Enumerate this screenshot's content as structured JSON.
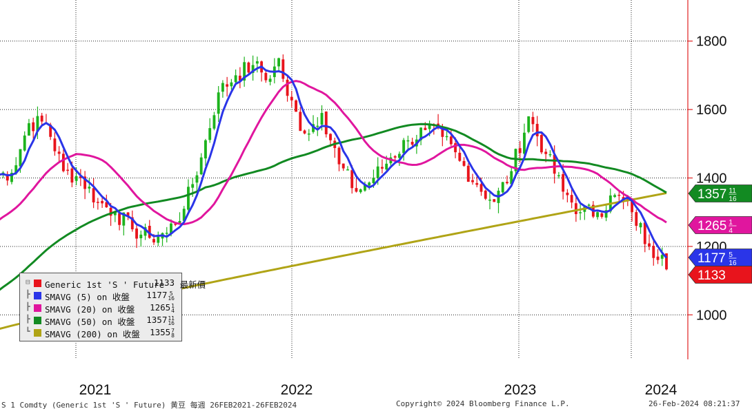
{
  "chart_data": {
    "type": "candlestick-with-moving-averages",
    "title": "",
    "x_ticks": [
      "2021",
      "2022",
      "2023",
      "2024"
    ],
    "y_ticks": [
      1000,
      1200,
      1400,
      1600,
      1800
    ],
    "ylim": [
      870,
      1920
    ],
    "grid": true,
    "x_range_weeks": 157,
    "price_anchors_close": [
      [
        0,
        1410
      ],
      [
        4,
        1415
      ],
      [
        8,
        1560
      ],
      [
        12,
        1560
      ],
      [
        16,
        1420
      ],
      [
        20,
        1400
      ],
      [
        24,
        1330
      ],
      [
        28,
        1300
      ],
      [
        32,
        1250
      ],
      [
        36,
        1225
      ],
      [
        40,
        1240
      ],
      [
        44,
        1310
      ],
      [
        48,
        1460
      ],
      [
        52,
        1650
      ],
      [
        56,
        1700
      ],
      [
        60,
        1730
      ],
      [
        64,
        1690
      ],
      [
        66,
        1750
      ],
      [
        68,
        1640
      ],
      [
        72,
        1530
      ],
      [
        76,
        1590
      ],
      [
        80,
        1440
      ],
      [
        84,
        1360
      ],
      [
        88,
        1400
      ],
      [
        92,
        1460
      ],
      [
        96,
        1510
      ],
      [
        100,
        1540
      ],
      [
        104,
        1520
      ],
      [
        108,
        1450
      ],
      [
        112,
        1380
      ],
      [
        116,
        1330
      ],
      [
        120,
        1420
      ],
      [
        124,
        1580
      ],
      [
        128,
        1470
      ],
      [
        132,
        1360
      ],
      [
        136,
        1300
      ],
      [
        140,
        1300
      ],
      [
        144,
        1350
      ],
      [
        148,
        1300
      ],
      [
        152,
        1200
      ],
      [
        155,
        1175
      ],
      [
        156,
        1133
      ]
    ],
    "legend_placement": "bottom-left",
    "series": [
      {
        "name": "Generic 1st 'S ' Future - 最新價",
        "value": "1133",
        "color": "#e8141c"
      },
      {
        "name": "SMAVG (5)  on 收盤",
        "value": "1177 5/16",
        "color": "#2a35e8"
      },
      {
        "name": "SMAVG (20)  on 收盤",
        "value": "1265 1/4",
        "color": "#e0169e"
      },
      {
        "name": "SMAVG (50)  on 收盤",
        "value": "1357 11/16",
        "color": "#128a22"
      },
      {
        "name": "SMAVG (200)  on 收盤",
        "value": "1355 7/8",
        "color": "#b0a416"
      }
    ],
    "value_tags": [
      {
        "text": "1357 11/16",
        "value": 1357.7,
        "color": "#128a22"
      },
      {
        "text": "1265 1/4",
        "value": 1265.25,
        "color": "#e0169e"
      },
      {
        "text": "1177 5/16",
        "value": 1177.3,
        "color": "#2a35e8"
      },
      {
        "text": "1133",
        "value": 1133,
        "color": "#e8141c"
      }
    ]
  },
  "footer": {
    "left": "S 1 Comdty (Generic 1st 'S ' Future) 黄豆  每週 26FEB2021-26FEB2024",
    "center": "Copyright© 2024 Bloomberg Finance L.P.",
    "right": "26-Feb-2024 08:21:37"
  }
}
